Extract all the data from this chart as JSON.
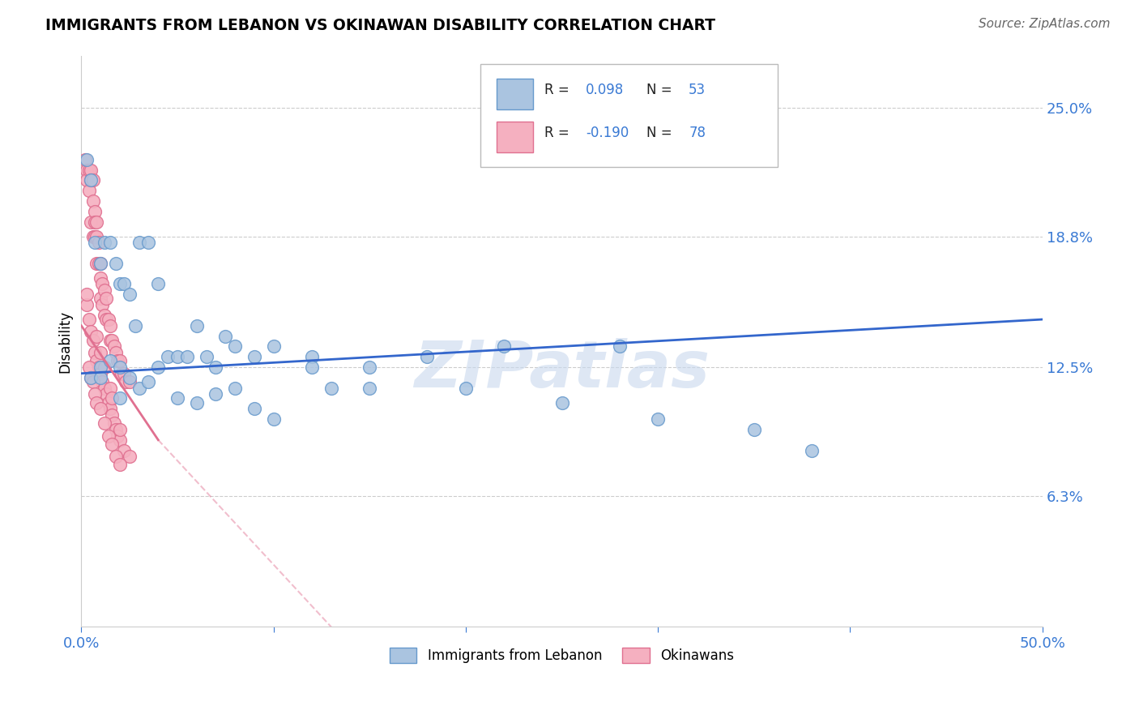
{
  "title": "IMMIGRANTS FROM LEBANON VS OKINAWAN DISABILITY CORRELATION CHART",
  "source": "Source: ZipAtlas.com",
  "ylabel_label": "Disability",
  "y_ticks": [
    0.063,
    0.125,
    0.188,
    0.25
  ],
  "y_tick_labels": [
    "6.3%",
    "12.5%",
    "18.8%",
    "25.0%"
  ],
  "xlim": [
    0.0,
    0.5
  ],
  "ylim": [
    0.0,
    0.275
  ],
  "lebanon_color": "#aac4e0",
  "lebanon_edge": "#6699cc",
  "okinawa_color": "#f5b0c0",
  "okinawa_edge": "#e07090",
  "legend_label_1": "Immigrants from Lebanon",
  "legend_label_2": "Okinawans",
  "watermark": "ZIPatlas",
  "blue_line_color": "#3366cc",
  "pink_line_color": "#e07090",
  "lebanon_x": [
    0.003,
    0.005,
    0.007,
    0.01,
    0.012,
    0.015,
    0.018,
    0.02,
    0.022,
    0.025,
    0.028,
    0.03,
    0.035,
    0.04,
    0.045,
    0.05,
    0.055,
    0.06,
    0.065,
    0.07,
    0.075,
    0.08,
    0.09,
    0.1,
    0.12,
    0.13,
    0.15,
    0.18,
    0.22,
    0.28,
    0.01,
    0.015,
    0.02,
    0.025,
    0.03,
    0.035,
    0.04,
    0.05,
    0.06,
    0.07,
    0.08,
    0.09,
    0.1,
    0.12,
    0.15,
    0.2,
    0.25,
    0.3,
    0.35,
    0.38,
    0.005,
    0.01,
    0.02
  ],
  "lebanon_y": [
    0.225,
    0.215,
    0.185,
    0.175,
    0.185,
    0.185,
    0.175,
    0.165,
    0.165,
    0.16,
    0.145,
    0.185,
    0.185,
    0.165,
    0.13,
    0.13,
    0.13,
    0.145,
    0.13,
    0.125,
    0.14,
    0.135,
    0.13,
    0.135,
    0.13,
    0.115,
    0.125,
    0.13,
    0.135,
    0.135,
    0.125,
    0.128,
    0.125,
    0.12,
    0.115,
    0.118,
    0.125,
    0.11,
    0.108,
    0.112,
    0.115,
    0.105,
    0.1,
    0.125,
    0.115,
    0.115,
    0.108,
    0.1,
    0.095,
    0.085,
    0.12,
    0.12,
    0.11
  ],
  "okinawa_x": [
    0.002,
    0.003,
    0.003,
    0.004,
    0.004,
    0.005,
    0.005,
    0.005,
    0.006,
    0.006,
    0.006,
    0.007,
    0.007,
    0.007,
    0.008,
    0.008,
    0.008,
    0.009,
    0.009,
    0.01,
    0.01,
    0.01,
    0.011,
    0.011,
    0.012,
    0.012,
    0.013,
    0.013,
    0.014,
    0.015,
    0.015,
    0.016,
    0.017,
    0.018,
    0.019,
    0.02,
    0.021,
    0.022,
    0.023,
    0.025,
    0.003,
    0.004,
    0.005,
    0.006,
    0.007,
    0.008,
    0.009,
    0.01,
    0.011,
    0.012,
    0.013,
    0.014,
    0.015,
    0.016,
    0.017,
    0.018,
    0.019,
    0.02,
    0.022,
    0.025,
    0.004,
    0.005,
    0.006,
    0.007,
    0.008,
    0.01,
    0.012,
    0.014,
    0.016,
    0.018,
    0.02,
    0.003,
    0.015,
    0.02,
    0.008,
    0.01,
    0.012,
    0.016
  ],
  "okinawa_y": [
    0.225,
    0.22,
    0.215,
    0.22,
    0.21,
    0.22,
    0.215,
    0.195,
    0.215,
    0.205,
    0.188,
    0.2,
    0.195,
    0.188,
    0.195,
    0.188,
    0.175,
    0.185,
    0.175,
    0.175,
    0.168,
    0.158,
    0.165,
    0.155,
    0.162,
    0.15,
    0.158,
    0.148,
    0.148,
    0.145,
    0.138,
    0.138,
    0.135,
    0.132,
    0.128,
    0.128,
    0.122,
    0.122,
    0.118,
    0.118,
    0.155,
    0.148,
    0.142,
    0.138,
    0.132,
    0.128,
    0.125,
    0.122,
    0.118,
    0.115,
    0.112,
    0.108,
    0.105,
    0.102,
    0.098,
    0.095,
    0.092,
    0.09,
    0.085,
    0.082,
    0.125,
    0.12,
    0.118,
    0.112,
    0.108,
    0.105,
    0.098,
    0.092,
    0.088,
    0.082,
    0.078,
    0.16,
    0.115,
    0.095,
    0.14,
    0.132,
    0.125,
    0.11
  ]
}
